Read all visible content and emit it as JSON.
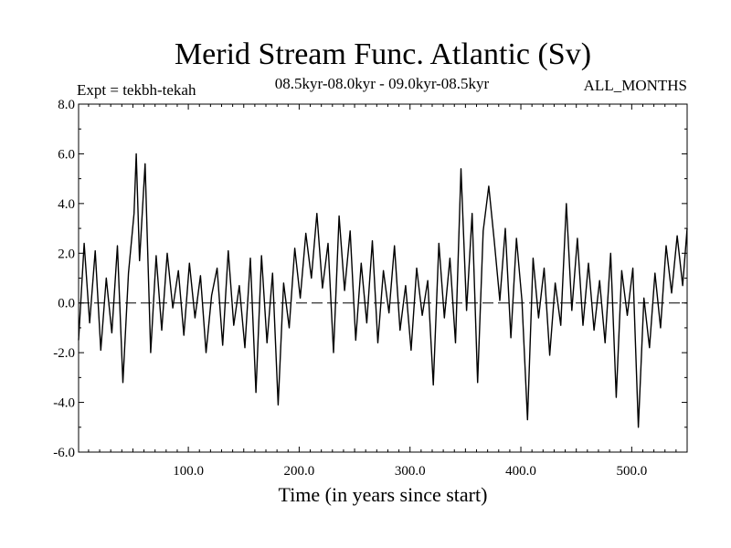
{
  "chart_data": {
    "type": "line",
    "title": "Merid Stream Func. Atlantic (Sv)",
    "subtitle_left": "Expt = tekbh-tekah",
    "subtitle_center": "08.5kyr-08.0kyr - 09.0kyr-08.5kyr",
    "subtitle_right": "ALL_MONTHS",
    "xlabel": "Time (in years since start)",
    "ylabel": "",
    "xlim": [
      1,
      550
    ],
    "ylim": [
      -6.0,
      8.0
    ],
    "xticks": [
      100,
      200,
      300,
      400,
      500
    ],
    "xtick_labels": [
      "100.0",
      "200.0",
      "300.0",
      "400.0",
      "500.0"
    ],
    "yticks": [
      -6,
      -4,
      -2,
      0,
      2,
      4,
      6,
      8
    ],
    "ytick_labels": [
      "-6.0",
      "-4.0",
      "-2.0",
      "0.0",
      "2.0",
      "4.0",
      "6.0",
      "8.0"
    ],
    "reference_line": {
      "y": 0.0,
      "style": "dashed"
    },
    "series": [
      {
        "name": "Expt = tekbh-tekah",
        "color": "#000000",
        "x": [
          1,
          6,
          11,
          16,
          21,
          26,
          31,
          36,
          41,
          46,
          51,
          53,
          56,
          61,
          66,
          71,
          76,
          81,
          86,
          91,
          96,
          101,
          106,
          111,
          116,
          121,
          126,
          131,
          136,
          141,
          146,
          151,
          156,
          161,
          166,
          171,
          176,
          181,
          186,
          191,
          196,
          201,
          206,
          211,
          216,
          221,
          226,
          231,
          236,
          241,
          246,
          251,
          256,
          261,
          266,
          271,
          276,
          281,
          286,
          291,
          296,
          301,
          306,
          311,
          316,
          321,
          326,
          331,
          336,
          341,
          346,
          351,
          356,
          361,
          366,
          371,
          376,
          381,
          386,
          391,
          396,
          401,
          406,
          411,
          416,
          421,
          426,
          431,
          436,
          441,
          446,
          451,
          456,
          461,
          466,
          471,
          476,
          481,
          486,
          491,
          496,
          501,
          506,
          511,
          516,
          521,
          526,
          531,
          536,
          541,
          546,
          550
        ],
        "y": [
          -1.5,
          2.4,
          -0.8,
          2.1,
          -1.9,
          1.0,
          -1.2,
          2.3,
          -3.2,
          1.2,
          3.6,
          6.0,
          1.7,
          5.6,
          -2.0,
          1.9,
          -1.1,
          2.0,
          -0.2,
          1.3,
          -1.3,
          1.6,
          -0.6,
          1.1,
          -2.0,
          0.3,
          1.4,
          -1.7,
          2.1,
          -0.9,
          0.7,
          -1.8,
          1.8,
          -3.6,
          1.9,
          -1.6,
          1.2,
          -4.1,
          0.8,
          -1.0,
          2.2,
          0.2,
          2.8,
          1.0,
          3.6,
          0.6,
          2.4,
          -2.0,
          3.5,
          0.5,
          2.9,
          -1.5,
          1.6,
          -0.8,
          2.5,
          -1.6,
          1.3,
          -0.4,
          2.3,
          -1.1,
          0.7,
          -1.9,
          1.4,
          -0.5,
          0.9,
          -3.3,
          2.4,
          -0.6,
          1.8,
          -1.6,
          5.4,
          -0.3,
          3.6,
          -3.2,
          2.9,
          4.7,
          2.5,
          0.1,
          3.0,
          -1.4,
          2.6,
          0.1,
          -4.7,
          1.8,
          -0.6,
          1.4,
          -2.1,
          0.8,
          -0.9,
          4.0,
          -0.3,
          2.6,
          -0.9,
          1.6,
          -1.1,
          0.9,
          -1.6,
          2.0,
          -3.8,
          1.3,
          -0.5,
          1.4,
          -5.0,
          0.2,
          -1.8,
          1.2,
          -1.0,
          2.3,
          0.4,
          2.7,
          0.7,
          3.0
        ]
      }
    ]
  }
}
